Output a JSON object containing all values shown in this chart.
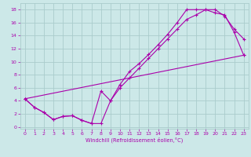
{
  "xlabel": "Windchill (Refroidissement éolien,°C)",
  "bg_color": "#cce8e8",
  "grid_color": "#aacccc",
  "line_color": "#aa00aa",
  "marker": "+",
  "xlim": [
    -0.5,
    23.5
  ],
  "ylim": [
    -0.3,
    19.0
  ],
  "xticks": [
    0,
    1,
    2,
    3,
    4,
    5,
    6,
    7,
    8,
    9,
    10,
    11,
    12,
    13,
    14,
    15,
    16,
    17,
    18,
    19,
    20,
    21,
    22,
    23
  ],
  "yticks": [
    0,
    2,
    4,
    6,
    8,
    10,
    12,
    14,
    16,
    18
  ],
  "line1_x": [
    0,
    1,
    2,
    3,
    4,
    5,
    6,
    7,
    8,
    9,
    10,
    11,
    12,
    13,
    14,
    15,
    16,
    17,
    18,
    19,
    20,
    21,
    22,
    23
  ],
  "line1_y": [
    4.3,
    3.0,
    2.2,
    1.1,
    1.6,
    1.7,
    1.0,
    0.5,
    0.5,
    4.0,
    6.5,
    8.5,
    9.7,
    11.1,
    12.6,
    14.2,
    16.0,
    18.0,
    18.0,
    18.0,
    18.0,
    17.0,
    15.0,
    13.5
  ],
  "line2_x": [
    0,
    1,
    2,
    3,
    4,
    5,
    6,
    7,
    8,
    9,
    10,
    11,
    12,
    13,
    14,
    15,
    16,
    17,
    18,
    19,
    20,
    21,
    22,
    23
  ],
  "line2_y": [
    4.3,
    3.0,
    2.2,
    1.1,
    1.6,
    1.7,
    1.0,
    0.5,
    5.5,
    4.0,
    6.0,
    7.5,
    9.0,
    10.5,
    12.0,
    13.5,
    15.0,
    16.5,
    17.2,
    18.0,
    17.5,
    17.2,
    14.5,
    11.0
  ],
  "line3_x": [
    0,
    23
  ],
  "line3_y": [
    4.3,
    11.0
  ]
}
